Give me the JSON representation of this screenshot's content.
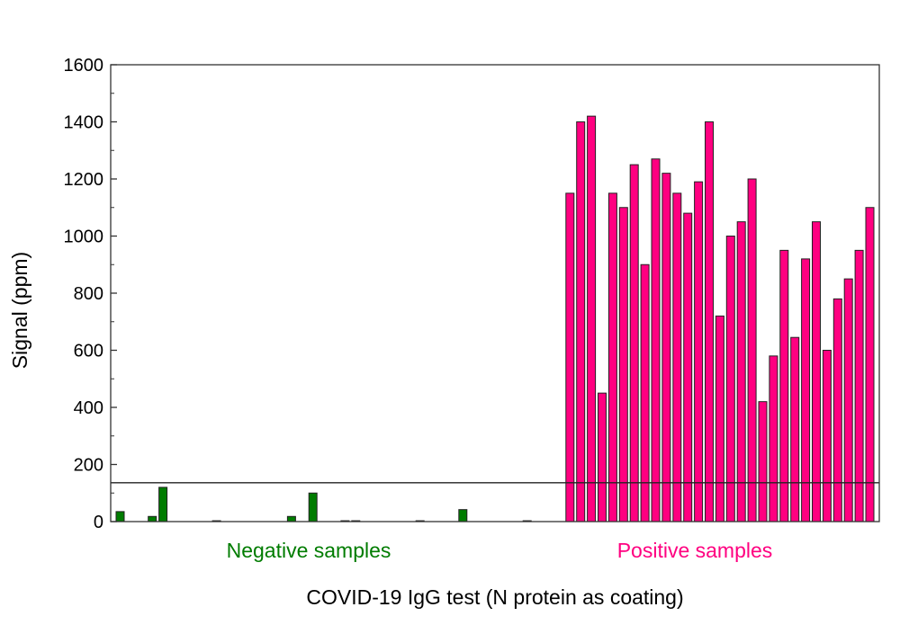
{
  "chart_data": {
    "type": "bar",
    "title": "",
    "xlabel": "COVID-19 IgG test (N protein as coating)",
    "ylabel": "Signal (ppm)",
    "ylim": [
      0,
      1600
    ],
    "yticks": [
      0,
      200,
      400,
      600,
      800,
      1000,
      1200,
      1400,
      1600
    ],
    "threshold": 136,
    "groups": [
      {
        "name": "Negative samples",
        "color": "#007c00",
        "values": [
          35,
          0,
          0,
          18,
          120,
          0,
          0,
          0,
          0,
          3,
          0,
          0,
          0,
          0,
          0,
          0,
          18,
          0,
          100,
          0,
          0,
          3,
          3,
          0,
          0,
          0,
          0,
          0,
          3,
          0,
          0,
          0,
          42,
          0,
          0,
          0,
          0,
          0,
          3,
          0,
          0,
          0
        ]
      },
      {
        "name": "Positive samples",
        "color": "#ff0080",
        "values": [
          1150,
          1400,
          1420,
          450,
          1150,
          1100,
          1250,
          900,
          1270,
          1220,
          1150,
          1080,
          1190,
          1400,
          720,
          1000,
          1050,
          1200,
          420,
          580,
          950,
          645,
          920,
          1050,
          600,
          780,
          850,
          950,
          1100
        ]
      }
    ]
  }
}
